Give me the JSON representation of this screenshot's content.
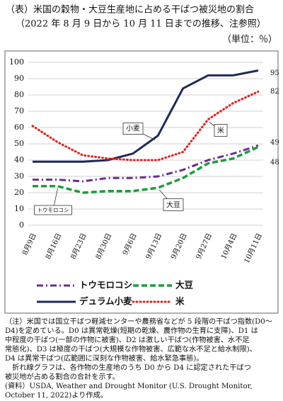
{
  "chart_data": {
    "type": "line",
    "title": "（表）米国の穀物・大豆生産地に占める干ばつ被災地の割合",
    "subtitle": "（2022 年 8 月 9 日から 10 月 11 日までの推移、注参照）",
    "unit_label": "（単位：％）",
    "categories": [
      "8月9日",
      "8月16日",
      "8月23日",
      "8月30日",
      "9月6日",
      "9月13日",
      "9月20日",
      "9月27日",
      "10月4日",
      "10月11日"
    ],
    "series": [
      {
        "name": "トウモロコシ",
        "color": "#6b2c91",
        "values": [
          28,
          28,
          27,
          29,
          29,
          30,
          34,
          40,
          44,
          49
        ]
      },
      {
        "name": "大豆",
        "color": "#1a9e3a",
        "values": [
          24,
          24,
          20,
          21,
          21,
          23,
          29,
          38,
          41,
          48
        ]
      },
      {
        "name": "デュラム小麦",
        "color": "#1f2a5c",
        "values": [
          39,
          39,
          39,
          40,
          44,
          55,
          84,
          92,
          92,
          95
        ]
      },
      {
        "name": "米",
        "color": "#e0201b",
        "values": [
          61,
          51,
          43,
          41,
          40,
          40,
          45,
          65,
          75,
          82
        ]
      }
    ],
    "annotations": [
      "小麦",
      "米",
      "大豆",
      "トウモロコシ"
    ],
    "ylim": [
      0,
      100
    ],
    "yticks": [
      0,
      10,
      20,
      30,
      40,
      50,
      60,
      70,
      80,
      90,
      100
    ],
    "grid": true,
    "notes": [
      "（注）米国では国立干ばつ軽減センターや農務省などが 5 段階の干ばつ指数(D0～",
      "D4)を定めている。D0 は異常乾燥(短期の乾燥、農作物の生育に支障)、D1 は",
      "中程度の干ばつ(一部の作物に被害)、D2 は激しい干ばつ(作物被害、水不足",
      "常態化)、D3 は極度の干ばつ(大規模な作物被害、広範な水不足と給水制限)、",
      "D4 は異常干ばつ(広範囲に深刻な作物被害、給水緊急事態)。",
      "　折れ線グラフは、各作物の生産地のうち D0 から D4 に認定された干ばつ",
      "被災地が占める割合の合計を示す。",
      "(資料）USDA, Weather and Drought Monitor (U.S. Drought Monitor,",
      "October 11, 2022)より作成。"
    ]
  }
}
